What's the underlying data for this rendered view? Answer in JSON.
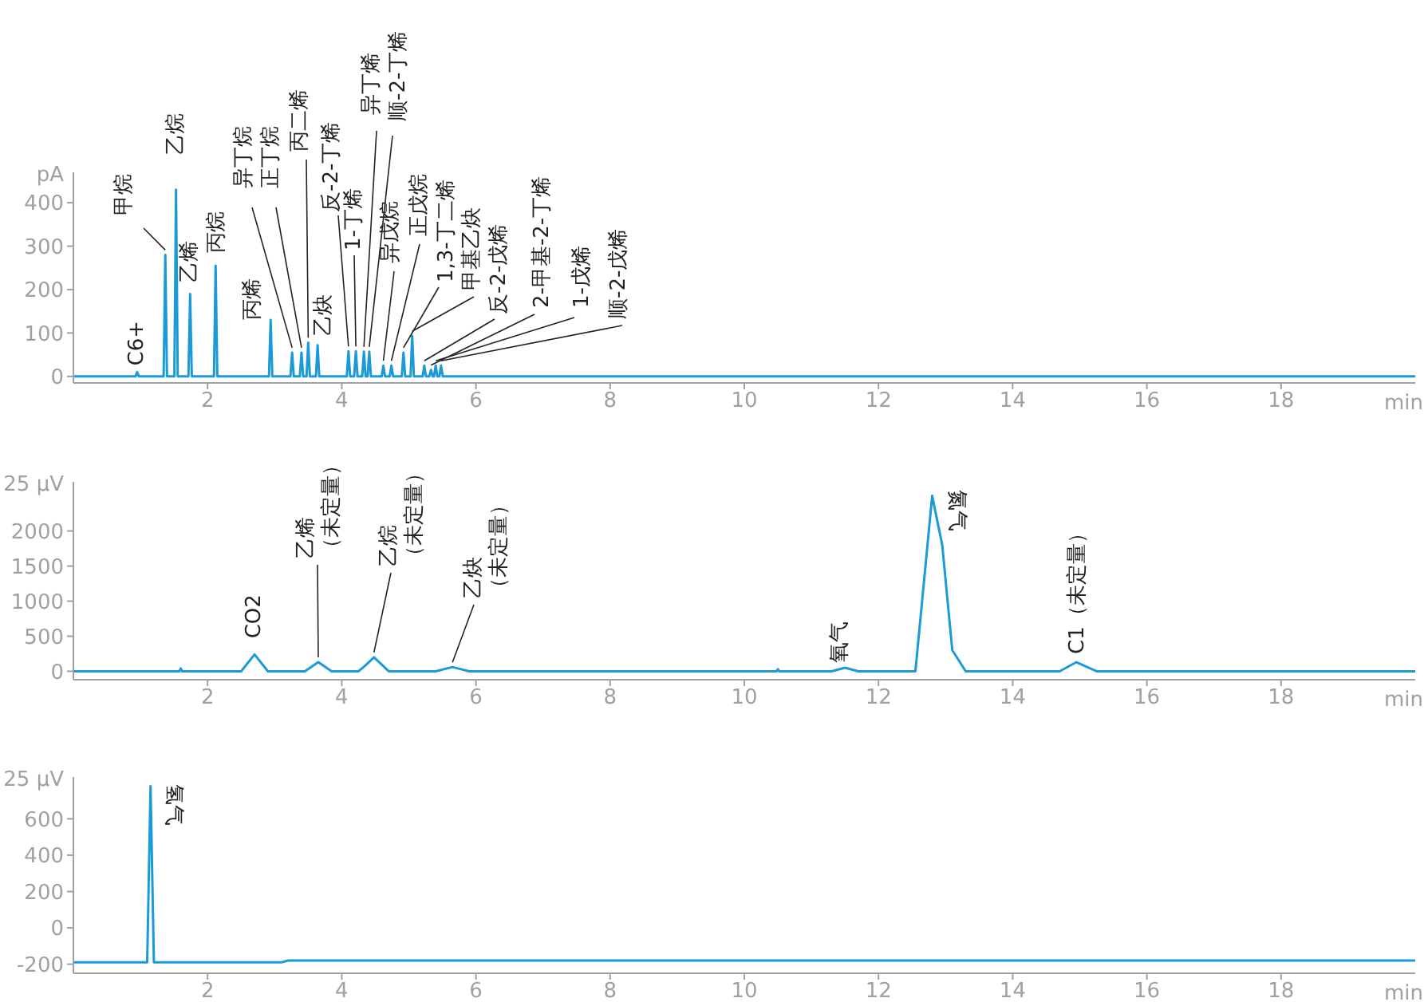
{
  "chart_data": [
    {
      "type": "line",
      "ylabel": "pA",
      "xlabel": "min",
      "color": "#1a9ad6",
      "xlim": [
        0,
        20
      ],
      "xticks": [
        2,
        4,
        6,
        8,
        10,
        12,
        14,
        16,
        18
      ],
      "ylim": [
        -15,
        470
      ],
      "yticks": [
        0,
        100,
        200,
        300,
        400
      ],
      "x": [
        0,
        0.925,
        0.95,
        0.975,
        1.345,
        1.37,
        1.395,
        1.505,
        1.53,
        1.555,
        1.715,
        1.74,
        1.765,
        2.095,
        2.12,
        2.145,
        2.915,
        2.94,
        2.965,
        3.235,
        3.26,
        3.285,
        3.375,
        3.4,
        3.425,
        3.475,
        3.5,
        3.525,
        3.615,
        3.64,
        3.665,
        4.075,
        4.1,
        4.125,
        4.185,
        4.21,
        4.235,
        4.305,
        4.33,
        4.355,
        4.385,
        4.41,
        4.435,
        4.595,
        4.62,
        4.645,
        4.715,
        4.74,
        4.765,
        4.895,
        4.92,
        4.945,
        5.025,
        5.05,
        5.075,
        5.205,
        5.23,
        5.255,
        5.305,
        5.33,
        5.355,
        5.375,
        5.4,
        5.425,
        5.455,
        5.48,
        5.505,
        20
      ],
      "values": [
        0,
        0,
        10,
        0,
        0,
        280,
        0,
        0,
        430,
        0,
        0,
        190,
        0,
        0,
        255,
        0,
        0,
        130,
        0,
        0,
        55,
        0,
        0,
        55,
        0,
        0,
        78,
        0,
        0,
        72,
        0,
        0,
        58,
        0,
        0,
        58,
        0,
        0,
        57,
        0,
        0,
        57,
        0,
        0,
        25,
        0,
        0,
        25,
        0,
        0,
        55,
        0,
        0,
        93,
        0,
        0,
        25,
        0,
        0,
        15,
        0,
        0,
        25,
        0,
        0,
        25,
        0,
        0
      ],
      "annotations": [
        {
          "text": "C6+",
          "x": 0.95,
          "y": 10
        },
        {
          "text": "甲烷",
          "x": 1.37,
          "y": 280
        },
        {
          "text": "乙烷",
          "x": 1.53,
          "y": 430
        },
        {
          "text": "乙烯",
          "x": 1.74,
          "y": 190
        },
        {
          "text": "丙烷",
          "x": 2.12,
          "y": 255
        },
        {
          "text": "丙烯",
          "x": 2.94,
          "y": 130
        },
        {
          "text": "异丁烷",
          "x": 3.26,
          "y": 55
        },
        {
          "text": "正丁烷",
          "x": 3.4,
          "y": 55
        },
        {
          "text": "丙二烯",
          "x": 3.5,
          "y": 78
        },
        {
          "text": "乙炔",
          "x": 3.64,
          "y": 72
        },
        {
          "text": "反-2-丁烯",
          "x": 4.1,
          "y": 58
        },
        {
          "text": "1-丁烯",
          "x": 4.21,
          "y": 58
        },
        {
          "text": "异丁烯",
          "x": 4.33,
          "y": 57
        },
        {
          "text": "顺-2-丁烯",
          "x": 4.41,
          "y": 57
        },
        {
          "text": "异戊烷",
          "x": 4.62,
          "y": 25
        },
        {
          "text": "正戊烷",
          "x": 4.74,
          "y": 25
        },
        {
          "text": "1,3-丁二烯",
          "x": 4.92,
          "y": 55
        },
        {
          "text": "甲基乙炔",
          "x": 5.05,
          "y": 93
        },
        {
          "text": "反-2-戊烯",
          "x": 5.23,
          "y": 25
        },
        {
          "text": "2-甲基-2-丁烯",
          "x": 5.33,
          "y": 15
        },
        {
          "text": "1-戊烯",
          "x": 5.4,
          "y": 25
        },
        {
          "text": "顺-2-戊烯",
          "x": 5.48,
          "y": 25
        }
      ]
    },
    {
      "type": "line",
      "ylabel": "25 μV",
      "xlabel": "min",
      "color": "#1a9ad6",
      "xlim": [
        0,
        20
      ],
      "xticks": [
        2,
        4,
        6,
        8,
        10,
        12,
        14,
        16,
        18
      ],
      "ylim": [
        -120,
        2700
      ],
      "yticks": [
        0,
        500,
        1000,
        1500,
        2000
      ],
      "x": [
        0,
        1.58,
        1.6,
        1.62,
        2.5,
        2.7,
        2.9,
        3.45,
        3.65,
        3.85,
        4.25,
        4.35,
        4.48,
        4.7,
        5.4,
        5.65,
        5.9,
        10.48,
        10.5,
        10.52,
        11.3,
        11.5,
        11.7,
        12.55,
        12.7,
        12.8,
        12.95,
        13.1,
        13.3,
        14.7,
        14.95,
        15.25,
        20
      ],
      "values": [
        0,
        0,
        40,
        0,
        0,
        240,
        0,
        0,
        130,
        0,
        0,
        80,
        200,
        0,
        0,
        60,
        0,
        0,
        30,
        0,
        0,
        50,
        0,
        0,
        1500,
        2500,
        1800,
        300,
        0,
        0,
        130,
        0,
        0
      ],
      "annotations": [
        {
          "text": "CO2",
          "x": 2.7,
          "y": 240
        },
        {
          "text": "乙烯",
          "x": 3.65,
          "y": 130
        },
        "（未定量）",
        {
          "text": "乙烷",
          "x": 4.48,
          "y": 200
        },
        "（未定量）",
        {
          "text": "乙炔",
          "x": 5.65,
          "y": 60
        },
        "（未定量）",
        {
          "text": "氧气",
          "x": 11.5,
          "y": 50
        },
        {
          "text": "氮气",
          "x": 12.8,
          "y": 2500
        },
        {
          "text": "C1（未定量）",
          "x": 14.95,
          "y": 130
        }
      ]
    },
    {
      "type": "line",
      "ylabel": "25 μV",
      "xlabel": "min",
      "color": "#1a9ad6",
      "xlim": [
        0,
        20
      ],
      "xticks": [
        2,
        4,
        6,
        8,
        10,
        12,
        14,
        16,
        18
      ],
      "ylim": [
        -250,
        830
      ],
      "yticks": [
        -200,
        0,
        200,
        400,
        600
      ],
      "x": [
        0,
        1.1,
        1.15,
        1.2,
        1.5,
        3.1,
        3.2,
        6.6,
        6.7,
        9.5,
        20
      ],
      "values": [
        -190,
        -190,
        780,
        -190,
        -190,
        -190,
        -180,
        -180,
        -180,
        -180,
        -180
      ],
      "annotations": [
        {
          "text": "氢气",
          "x": 1.15,
          "y": 780
        }
      ]
    }
  ]
}
